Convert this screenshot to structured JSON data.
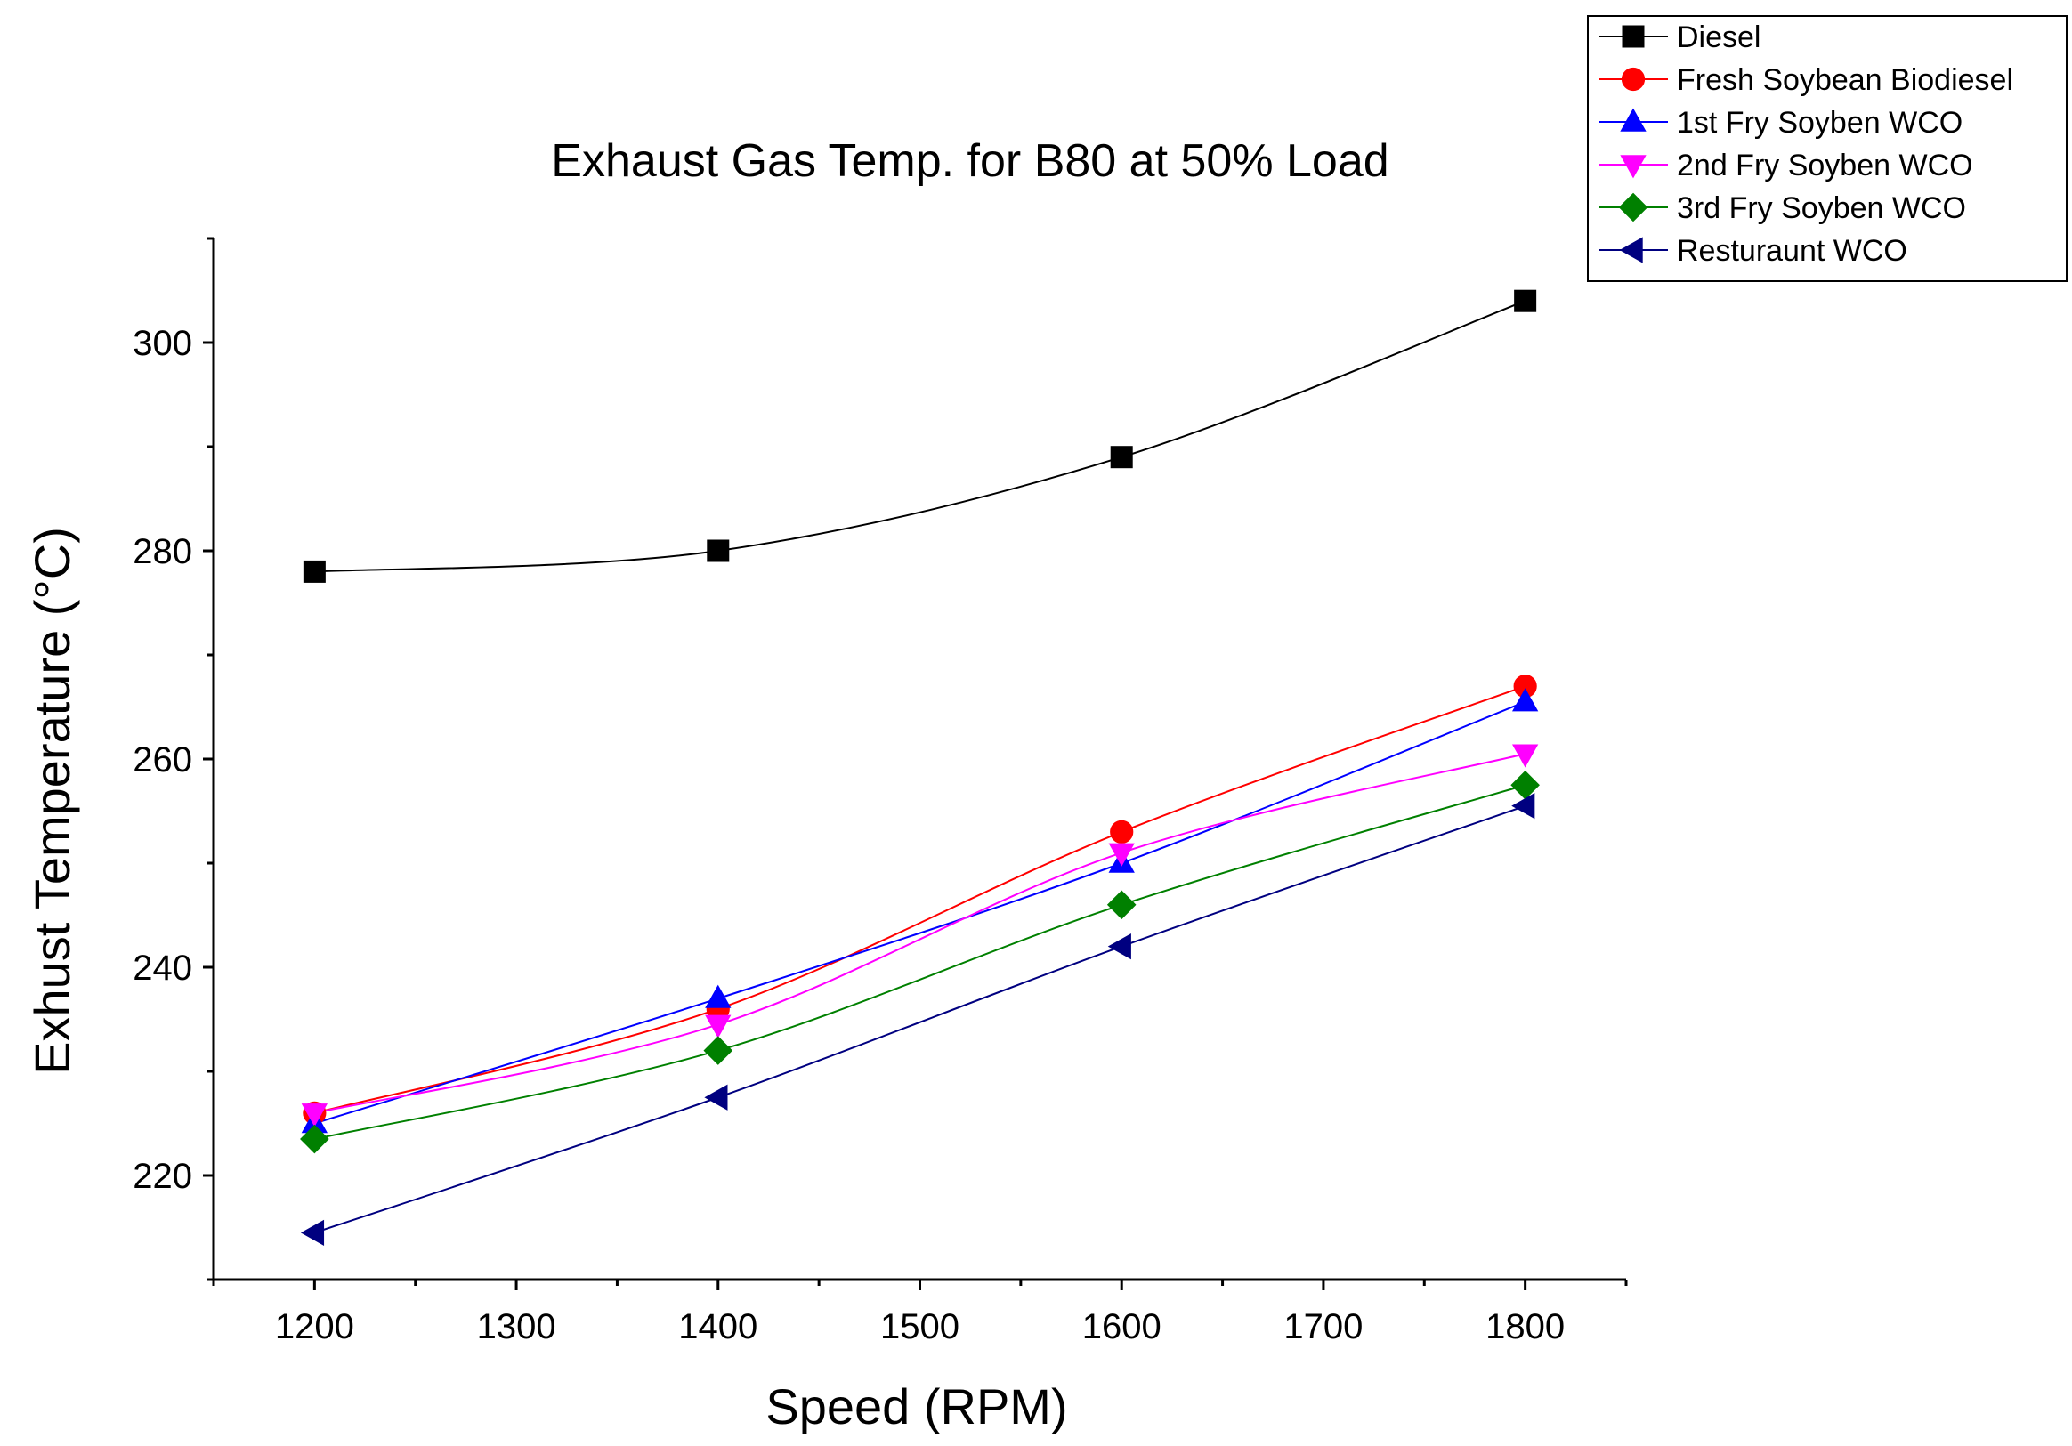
{
  "chart_data": {
    "type": "line",
    "title": "Exhaust Gas Temp. for B80 at 50% Load",
    "xlabel": "Speed (RPM)",
    "ylabel": "Exhust Temperature (°C)",
    "xlim": [
      1150,
      1850
    ],
    "ylim": [
      210,
      310
    ],
    "xticks": [
      1200,
      1300,
      1400,
      1500,
      1600,
      1700,
      1800
    ],
    "yticks": [
      220,
      240,
      260,
      280,
      300
    ],
    "legend_position": "top-right",
    "x": [
      1200,
      1400,
      1600,
      1800
    ],
    "series": [
      {
        "name": "Diesel",
        "color": "#000000",
        "marker": "square",
        "values": [
          278,
          280,
          289,
          304
        ]
      },
      {
        "name": "Fresh Soybean Biodiesel",
        "color": "#ff0000",
        "marker": "circle",
        "values": [
          226,
          236,
          253,
          267
        ]
      },
      {
        "name": "1st Fry Soyben WCO",
        "color": "#0000ff",
        "marker": "triangle-up",
        "values": [
          225,
          237,
          250,
          265.5
        ]
      },
      {
        "name": "2nd Fry Soyben WCO",
        "color": "#ff00ff",
        "marker": "triangle-down",
        "values": [
          226,
          234.5,
          251,
          260.5
        ]
      },
      {
        "name": "3rd Fry Soyben WCO",
        "color": "#008000",
        "marker": "diamond",
        "values": [
          223.5,
          232,
          246,
          257.5
        ]
      },
      {
        "name": "Resturaunt WCO",
        "color": "#000080",
        "marker": "triangle-left",
        "values": [
          214.5,
          227.5,
          242,
          255.5
        ]
      }
    ]
  }
}
